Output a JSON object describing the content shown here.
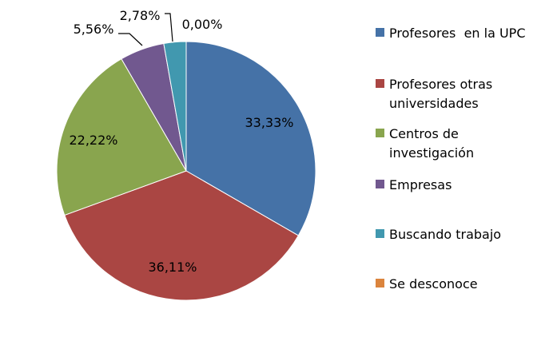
{
  "chart_data": {
    "type": "pie",
    "title": "",
    "categories": [
      "Profesores  en la UPC",
      "Profesores otras universidades",
      "Centros de investigación",
      "Empresas",
      "Buscando trabajo",
      "Se desconoce"
    ],
    "legend_lines": [
      [
        "Profesores  en la UPC"
      ],
      [
        "Profesores otras",
        "universidades"
      ],
      [
        "Centros de",
        "investigación"
      ],
      [
        "Empresas"
      ],
      [
        "Buscando trabajo"
      ],
      [
        "Se desconoce"
      ]
    ],
    "values": [
      33.33,
      36.11,
      22.22,
      5.56,
      2.78,
      0.0
    ],
    "data_labels": [
      "33,33%",
      "36,11%",
      "22,22%",
      "5,56%",
      "2,78%",
      "0,00%"
    ],
    "colors": [
      "#4572A7",
      "#AA4643",
      "#89A54E",
      "#71588F",
      "#4198AF",
      "#DB843D"
    ],
    "legend_placement": "right"
  }
}
